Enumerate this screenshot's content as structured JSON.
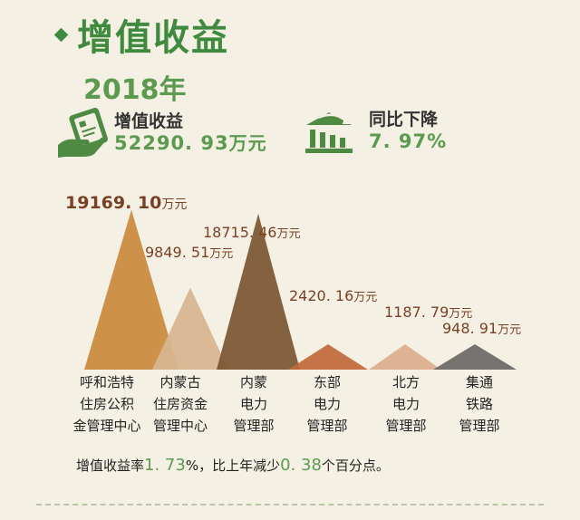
{
  "header": {
    "title": "增值收益",
    "year": "2018年"
  },
  "stats": [
    {
      "label": "增值收益",
      "value": "52290. 93",
      "unit": "万元",
      "icon": "card-hand-icon"
    },
    {
      "label": "同比下降",
      "value": "7. 97%",
      "unit": "",
      "icon": "bank-chart-icon"
    }
  ],
  "chart_data": {
    "type": "area",
    "categories": [
      [
        "呼和浩特",
        "住房公积",
        "金管理中心"
      ],
      [
        "内蒙古",
        "住房资金",
        "管理中心"
      ],
      [
        "内蒙",
        "电力",
        "管理部"
      ],
      [
        "东部",
        "电力",
        "管理部"
      ],
      [
        "北方",
        "电力",
        "管理部"
      ],
      [
        "集通",
        "铁路",
        "管理部"
      ]
    ],
    "values": [
      19169.1,
      9849.51,
      18715.46,
      2420.16,
      1187.79,
      948.91
    ],
    "value_labels": [
      "19169. 10",
      "9849. 51",
      "18715. 46",
      "2420. 16",
      "1187. 79",
      "948. 91"
    ],
    "unit": "万元",
    "colors": [
      "#c98a3e",
      "#d7b690",
      "#7b5733",
      "#c26b3b",
      "#dcae8e",
      "#6c6866"
    ]
  },
  "footer": {
    "text1": "增值收益率",
    "rate": "1. 73",
    "text2": "%，比上年减少",
    "decrease": "0. 38",
    "text3": "个百分点。"
  }
}
